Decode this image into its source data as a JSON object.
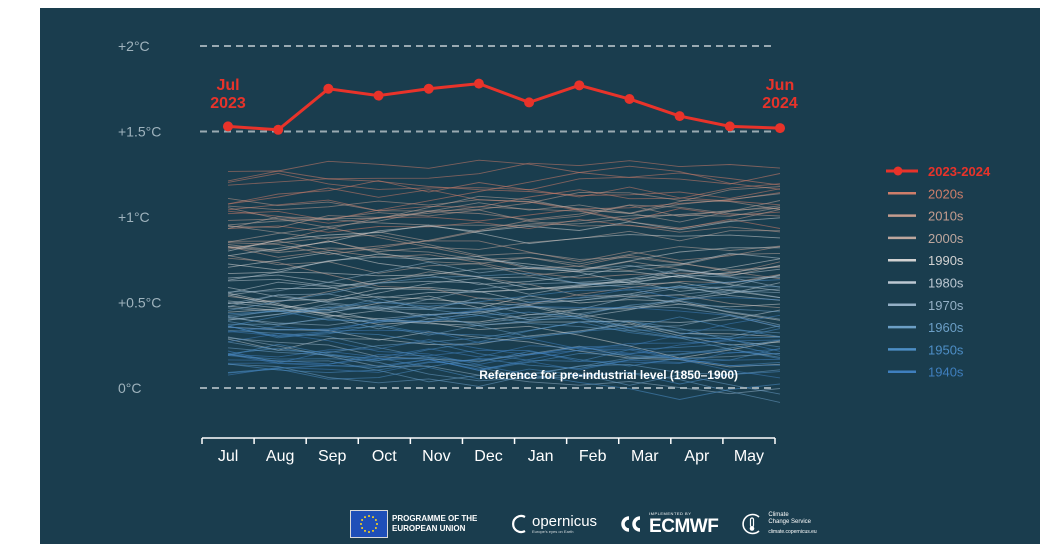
{
  "chart_data": {
    "type": "line",
    "x_categories": [
      "Jul",
      "Aug",
      "Sep",
      "Oct",
      "Nov",
      "Dec",
      "Jan",
      "Feb",
      "Mar",
      "Apr",
      "May",
      "Jun"
    ],
    "x_tick_labels": [
      "Jul",
      "Aug",
      "Sep",
      "Oct",
      "Nov",
      "Dec",
      "Jan",
      "Feb",
      "Mar",
      "Apr",
      "May"
    ],
    "y_ticks": [
      {
        "value": 0,
        "label": "0°C"
      },
      {
        "value": 0.5,
        "label": "+0.5°C"
      },
      {
        "value": 1,
        "label": "+1°C"
      },
      {
        "value": 1.5,
        "label": "+1.5°C"
      },
      {
        "value": 2,
        "label": "+2°C"
      }
    ],
    "ylim": [
      -0.25,
      2.05
    ],
    "dashed_reference_lines": [
      0,
      1.5,
      2
    ],
    "reference_annotation": "Reference for pre-industrial level (1850–1900)",
    "highlight_series": {
      "name": "2023-2024",
      "color": "#e8332a",
      "values": [
        1.53,
        1.51,
        1.75,
        1.71,
        1.75,
        1.78,
        1.67,
        1.77,
        1.69,
        1.59,
        1.53,
        1.52
      ],
      "start_label": [
        "Jul",
        "2023"
      ],
      "end_label": [
        "Jun",
        "2024"
      ]
    },
    "decades": [
      {
        "name": "2020s",
        "color": "#cf7e6a",
        "base": 1.15
      },
      {
        "name": "2010s",
        "color": "#c49c8e",
        "base": 0.92
      },
      {
        "name": "2000s",
        "color": "#bea79e",
        "base": 0.75
      },
      {
        "name": "1990s",
        "color": "#d2d2d2",
        "base": 0.6
      },
      {
        "name": "1980s",
        "color": "#bcc8d2",
        "base": 0.48
      },
      {
        "name": "1970s",
        "color": "#94b0c6",
        "base": 0.38
      },
      {
        "name": "1960s",
        "color": "#6c9fc6",
        "base": 0.32
      },
      {
        "name": "1950s",
        "color": "#4d8ec6",
        "base": 0.26
      },
      {
        "name": "1940s",
        "color": "#3f7fbe",
        "base": 0.22
      }
    ]
  },
  "logos": {
    "eu_line1": "PROGRAMME OF THE",
    "eu_line2": "EUROPEAN UNION",
    "copernicus": "opernicus",
    "copernicus_sub": "Europe's eyes on Earth",
    "ecmwf_sub": "IMPLEMENTED BY",
    "ecmwf": "ECMWF",
    "c3s_line1": "Climate",
    "c3s_line2": "Change Service",
    "c3s_url": "climate.copernicus.eu"
  },
  "colors": {
    "background": "#1a3d4e",
    "axis_text": "#9fb3bd",
    "reference_line": "#9aaab2",
    "highlight": "#e8332a"
  }
}
